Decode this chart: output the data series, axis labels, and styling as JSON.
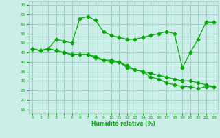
{
  "xlabel": "Humidité relative (%)",
  "bg_color": "#cceee8",
  "grid_color": "#99ccbb",
  "line_color": "#00aa00",
  "xlim": [
    -0.5,
    23.5
  ],
  "ylim": [
    13,
    72
  ],
  "yticks": [
    15,
    20,
    25,
    30,
    35,
    40,
    45,
    50,
    55,
    60,
    65,
    70
  ],
  "xticks": [
    0,
    1,
    2,
    3,
    4,
    5,
    6,
    7,
    8,
    9,
    10,
    11,
    12,
    13,
    14,
    15,
    16,
    17,
    18,
    19,
    20,
    21,
    22,
    23
  ],
  "line1_x": [
    0,
    1,
    2,
    3,
    4,
    5,
    6,
    7,
    8,
    9,
    10,
    11,
    12,
    13,
    14,
    15,
    16,
    17,
    18,
    19,
    20,
    21,
    22,
    23
  ],
  "line1_y": [
    47,
    46,
    47,
    52,
    51,
    50,
    63,
    64,
    62,
    56,
    54,
    53,
    52,
    52,
    53,
    54,
    55,
    56,
    55,
    37,
    45,
    52,
    61,
    61
  ],
  "line2_x": [
    0,
    1,
    2,
    3,
    4,
    5,
    6,
    7,
    8,
    9,
    10,
    11,
    12,
    13,
    14,
    15,
    16,
    17,
    18,
    19,
    20,
    21,
    22,
    23
  ],
  "line2_y": [
    47,
    46,
    47,
    46,
    45,
    44,
    44,
    44,
    43,
    41,
    40,
    40,
    38,
    36,
    35,
    34,
    33,
    32,
    31,
    30,
    30,
    29,
    28,
    27
  ],
  "line3_x": [
    0,
    1,
    2,
    3,
    4,
    5,
    6,
    7,
    8,
    9,
    10,
    11,
    12,
    13,
    14,
    15,
    16,
    17,
    18,
    19,
    20,
    21,
    22,
    23
  ],
  "line3_y": [
    47,
    46,
    47,
    46,
    45,
    44,
    44,
    44,
    42,
    41,
    41,
    40,
    37,
    36,
    35,
    32,
    31,
    29,
    28,
    27,
    27,
    26,
    27,
    27
  ],
  "markersize": 2.5,
  "linewidth": 0.9
}
